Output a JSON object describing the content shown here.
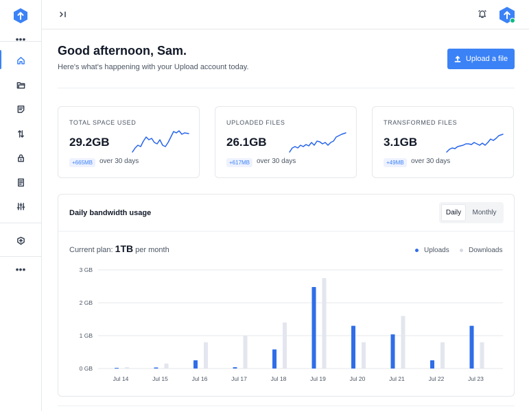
{
  "sidebar": {
    "items": [
      {
        "icon": "more-dots-icon"
      },
      {
        "icon": "home-icon",
        "active": true
      },
      {
        "icon": "folder-icon"
      },
      {
        "icon": "document-icon"
      },
      {
        "icon": "transfer-arrows-icon"
      },
      {
        "icon": "lock-icon"
      },
      {
        "icon": "file-text-icon"
      },
      {
        "icon": "sliders-icon"
      },
      {
        "icon": "shield-upload-icon"
      },
      {
        "icon": "more-dots-icon"
      }
    ]
  },
  "topbar": {
    "collapse_icon": "collapse-sidebar-icon",
    "bell_icon": "bell-icon",
    "avatar_icon": "avatar-icon"
  },
  "greeting": {
    "title": "Good afternoon, Sam.",
    "subtitle": "Here's what's happening with your Upload account today."
  },
  "upload_button": {
    "label": "Upload a file"
  },
  "stats": [
    {
      "label": "Total space used",
      "value": "29.2GB",
      "badge": "+665MB",
      "period": "over 30 days"
    },
    {
      "label": "Uploaded files",
      "value": "26.1GB",
      "badge": "+617MB",
      "period": "over 30 days"
    },
    {
      "label": "Transformed files",
      "value": "3.1GB",
      "badge": "+49MB",
      "period": "over 30 days"
    }
  ],
  "bandwidth": {
    "title": "Daily bandwidth usage",
    "toggle": {
      "daily": "Daily",
      "monthly": "Monthly",
      "selected": "Daily"
    },
    "plan_prefix": "Current plan:",
    "plan_value": "1TB",
    "plan_suffix": "per month"
  },
  "colors": {
    "accent": "#3b82f6",
    "uploads": "#2f6ee8",
    "downloads": "#e3e6ee"
  },
  "chart_data": {
    "type": "bar",
    "categories": [
      "Jul 14",
      "Jul 15",
      "Jul 16",
      "Jul 17",
      "Jul 18",
      "Jul 19",
      "Jul 20",
      "Jul 21",
      "Jul 22",
      "Jul 23"
    ],
    "series": [
      {
        "name": "Uploads",
        "values": [
          0.02,
          0.03,
          0.25,
          0.04,
          0.58,
          2.48,
          1.3,
          1.04,
          0.25,
          1.3
        ]
      },
      {
        "name": "Downloads",
        "values": [
          0.04,
          0.15,
          0.8,
          1.0,
          1.4,
          2.75,
          0.8,
          1.6,
          0.8,
          0.8
        ]
      }
    ],
    "yticks": [
      "0 GB",
      "1 GB",
      "2 GB",
      "3 GB"
    ],
    "ylim": [
      0,
      3
    ],
    "grid": true,
    "legend": "top-right"
  }
}
